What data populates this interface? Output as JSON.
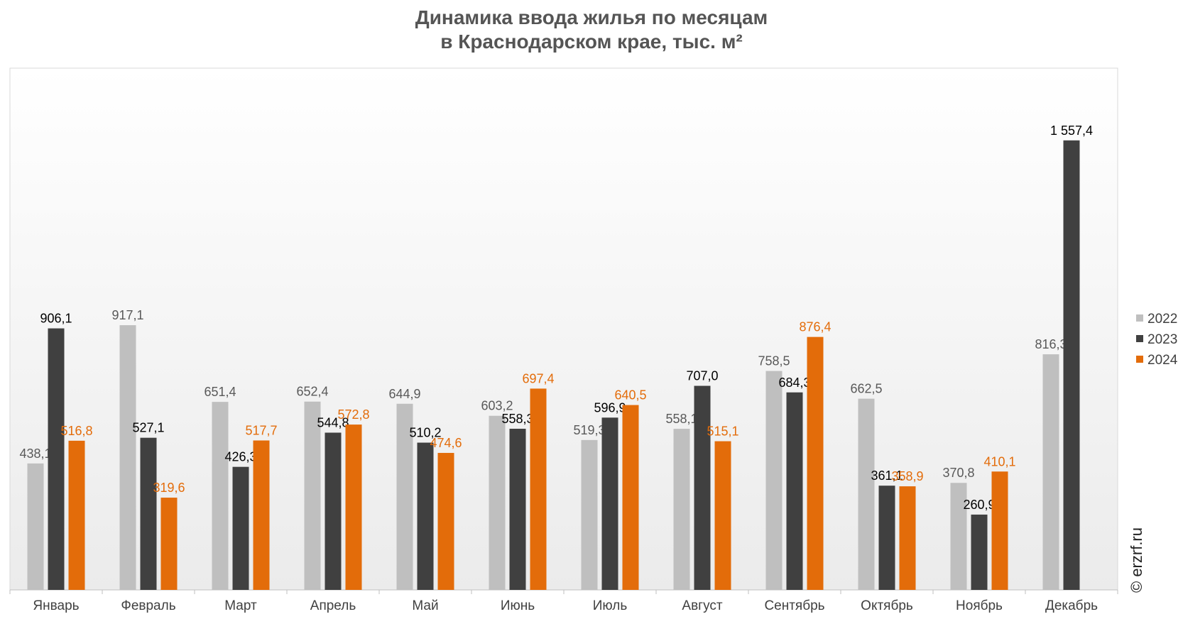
{
  "title_line1": "Динамика ввода жилья по месяцам",
  "title_line2": "в Краснодарском крае, тыс. м²",
  "watermark": "© erzrf.ru",
  "colors": {
    "2022": "#bfbfbf",
    "2023": "#404040",
    "2024": "#e36c0a"
  },
  "chart_data": {
    "type": "bar",
    "categories": [
      "Январь",
      "Февраль",
      "Март",
      "Апрель",
      "Май",
      "Июнь",
      "Июль",
      "Август",
      "Сентябрь",
      "Октябрь",
      "Ноябрь",
      "Декабрь"
    ],
    "series": [
      {
        "name": "2022",
        "values": [
          438.1,
          917.1,
          651.4,
          652.4,
          644.9,
          603.2,
          519.3,
          558.1,
          758.5,
          662.5,
          370.8,
          816.3
        ],
        "labels": [
          "438,1",
          "917,1",
          "651,4",
          "652,4",
          "644,9",
          "603,2",
          "519,3",
          "558,1",
          "758,5",
          "662,5",
          "370,8",
          "816,3"
        ]
      },
      {
        "name": "2023",
        "values": [
          906.1,
          527.1,
          426.3,
          544.8,
          510.2,
          558.3,
          596.9,
          707.0,
          684.3,
          361.1,
          260.9,
          1557.4
        ],
        "labels": [
          "906,1",
          "527,1",
          "426,3",
          "544,8",
          "510,2",
          "558,3",
          "596,9",
          "707,0",
          "684,3",
          "361,1",
          "260,9",
          "1 557,4"
        ]
      },
      {
        "name": "2024",
        "values": [
          516.8,
          319.6,
          517.7,
          572.8,
          474.6,
          697.4,
          640.5,
          515.1,
          876.4,
          358.9,
          410.1,
          null
        ],
        "labels": [
          "516,8",
          "319,6",
          "517,7",
          "572,8",
          "474,6",
          "697,4",
          "640,5",
          "515,1",
          "876,4",
          "358,9",
          "410,1",
          ""
        ]
      }
    ],
    "ylim": [
      0,
      1800
    ],
    "legend": "right",
    "grid": false
  }
}
